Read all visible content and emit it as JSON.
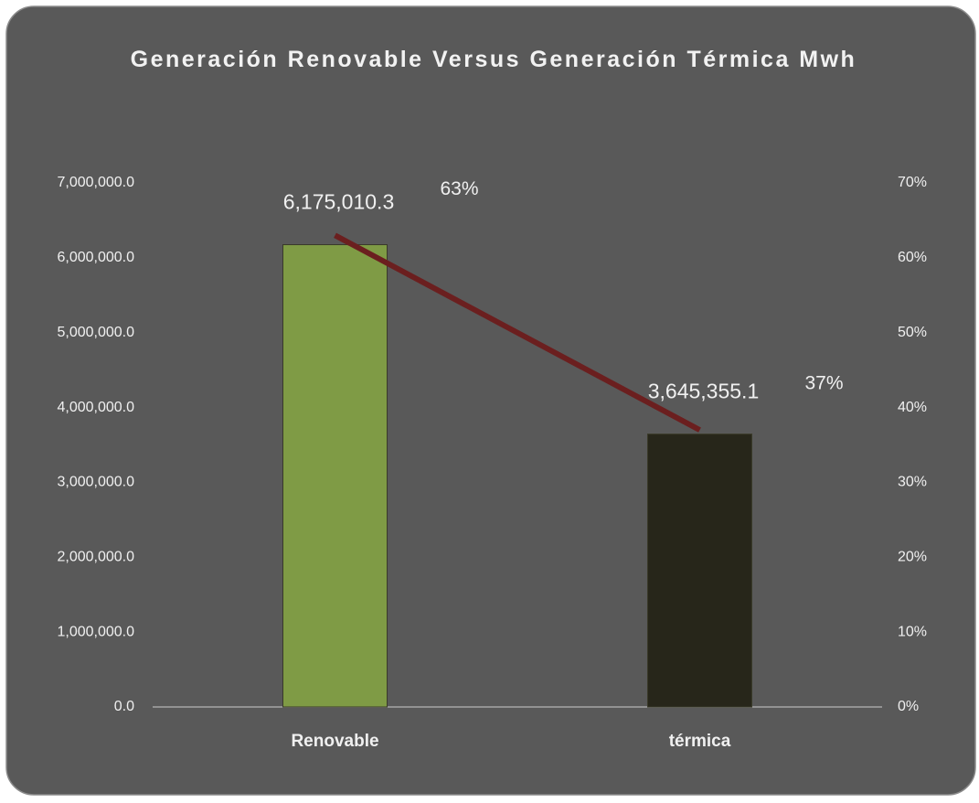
{
  "chart_data": {
    "type": "bar",
    "title": "Generación Renovable Versus Generación Térmica Mwh",
    "categories": [
      "Renovable",
      "térmica"
    ],
    "series": [
      {
        "type": "bar",
        "colors": [
          "#7f9b45",
          "#27261a"
        ],
        "values": [
          6175010.3,
          3645355.1
        ],
        "value_labels": [
          "6,175,010.3",
          "3,645,355.1"
        ]
      },
      {
        "type": "line",
        "axis": "y2",
        "color": "#6b1f1f",
        "values": [
          63,
          37
        ],
        "value_labels": [
          "63%",
          "37%"
        ]
      }
    ],
    "ylim": [
      0,
      7000000
    ],
    "yticks": [
      {
        "value": 0,
        "label": "0.0"
      },
      {
        "value": 1000000,
        "label": "1,000,000.0"
      },
      {
        "value": 2000000,
        "label": "2,000,000.0"
      },
      {
        "value": 3000000,
        "label": "3,000,000.0"
      },
      {
        "value": 4000000,
        "label": "4,000,000.0"
      },
      {
        "value": 5000000,
        "label": "5,000,000.0"
      },
      {
        "value": 6000000,
        "label": "6,000,000.0"
      },
      {
        "value": 7000000,
        "label": "7,000,000.0"
      }
    ],
    "y2lim": [
      0,
      70
    ],
    "y2ticks": [
      {
        "value": 0,
        "label": "0%"
      },
      {
        "value": 10,
        "label": "10%"
      },
      {
        "value": 20,
        "label": "20%"
      },
      {
        "value": 30,
        "label": "30%"
      },
      {
        "value": 40,
        "label": "40%"
      },
      {
        "value": 50,
        "label": "50%"
      },
      {
        "value": 60,
        "label": "60%"
      },
      {
        "value": 70,
        "label": "70%"
      }
    ],
    "grid": false
  }
}
